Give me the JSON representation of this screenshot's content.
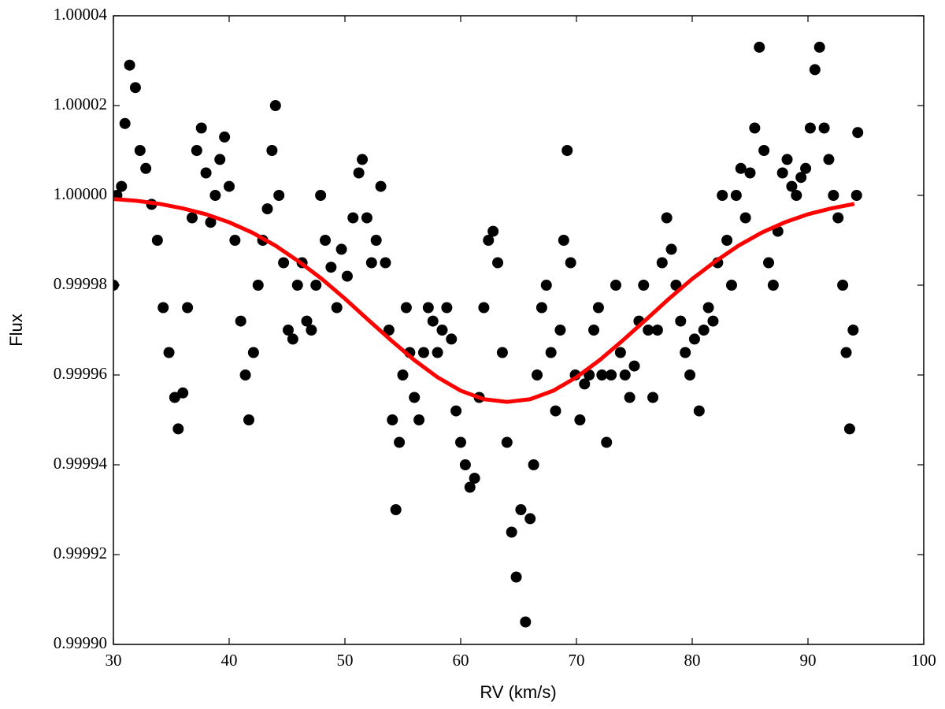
{
  "chart_data": {
    "type": "scatter",
    "xlabel": "RV (km/s)",
    "ylabel": "Flux",
    "xlim": [
      30,
      100
    ],
    "ylim": [
      0.9999,
      1.00004
    ],
    "xticks": [
      30,
      40,
      50,
      60,
      70,
      80,
      90,
      100
    ],
    "yticks": [
      {
        "value": 0.9999,
        "label": "0.99990"
      },
      0.99992,
      0.99994,
      0.99996,
      0.99998,
      {
        "value": 1,
        "label": "1.00000"
      },
      1.00002,
      1.00004
    ],
    "series": [
      {
        "type": "scatter",
        "color": "#000000",
        "x": [
          30.0,
          30.3,
          30.7,
          31.0,
          31.4,
          31.9,
          32.3,
          32.8,
          33.3,
          33.8,
          34.3,
          34.8,
          35.3,
          35.6,
          36.0,
          36.4,
          36.8,
          37.2,
          37.6,
          38.0,
          38.4,
          38.8,
          39.2,
          39.6,
          40.0,
          40.5,
          41.0,
          41.4,
          41.7,
          42.1,
          42.5,
          42.9,
          43.3,
          43.7,
          44.0,
          44.3,
          44.7,
          45.1,
          45.5,
          45.9,
          46.3,
          46.7,
          47.1,
          47.5,
          47.9,
          48.3,
          48.8,
          49.3,
          49.7,
          50.2,
          50.7,
          51.2,
          51.5,
          51.9,
          52.3,
          52.7,
          53.1,
          53.5,
          53.8,
          54.1,
          54.4,
          54.7,
          55.0,
          55.3,
          55.6,
          56.0,
          56.4,
          56.8,
          57.2,
          57.6,
          58.0,
          58.4,
          58.8,
          59.2,
          59.6,
          60.0,
          60.4,
          60.8,
          61.2,
          61.6,
          62.0,
          62.4,
          62.8,
          63.2,
          63.6,
          64.0,
          64.4,
          64.8,
          65.2,
          65.6,
          66.0,
          66.3,
          66.6,
          67.0,
          67.4,
          67.8,
          68.2,
          68.6,
          68.9,
          69.2,
          69.5,
          69.9,
          70.3,
          70.7,
          71.1,
          71.5,
          71.9,
          72.2,
          72.6,
          73.0,
          73.4,
          73.8,
          74.2,
          74.6,
          75.0,
          75.4,
          75.8,
          76.2,
          76.6,
          77.0,
          77.4,
          77.8,
          78.2,
          78.6,
          79.0,
          79.4,
          79.8,
          80.2,
          80.6,
          81.0,
          81.4,
          81.8,
          82.2,
          82.6,
          83.0,
          83.4,
          83.8,
          84.2,
          84.6,
          85.0,
          85.4,
          85.8,
          86.2,
          86.6,
          87.0,
          87.4,
          87.8,
          88.2,
          88.6,
          89.0,
          89.4,
          89.8,
          90.2,
          90.6,
          91.0,
          91.4,
          91.8,
          92.2,
          92.6,
          93.0,
          93.3,
          93.6,
          93.9,
          94.2,
          94.3
        ],
        "values": [
          0.99998,
          1.0,
          1.000002,
          1.000016,
          1.000029,
          1.000024,
          1.00001,
          1.000006,
          0.999998,
          0.99999,
          0.999975,
          0.999965,
          0.999955,
          0.999948,
          0.999956,
          0.999975,
          0.999995,
          1.00001,
          1.000015,
          1.000005,
          0.999994,
          1.0,
          1.000008,
          1.000013,
          1.000002,
          0.99999,
          0.999972,
          0.99996,
          0.99995,
          0.999965,
          0.99998,
          0.99999,
          0.999997,
          1.00001,
          1.00002,
          1.0,
          0.999985,
          0.99997,
          0.999968,
          0.99998,
          0.999985,
          0.999972,
          0.99997,
          0.99998,
          1.0,
          0.99999,
          0.999984,
          0.999975,
          0.999988,
          0.999982,
          0.999995,
          1.000005,
          1.000008,
          0.999995,
          0.999985,
          0.99999,
          1.000002,
          0.999985,
          0.99997,
          0.99995,
          0.99993,
          0.999945,
          0.99996,
          0.999975,
          0.999965,
          0.999955,
          0.99995,
          0.999965,
          0.999975,
          0.999972,
          0.999965,
          0.99997,
          0.999975,
          0.999968,
          0.999952,
          0.999945,
          0.99994,
          0.999935,
          0.999937,
          0.999955,
          0.999975,
          0.99999,
          0.999992,
          0.999985,
          0.999965,
          0.999945,
          0.999925,
          0.999915,
          0.99993,
          0.999905,
          0.999928,
          0.99994,
          0.99996,
          0.999975,
          0.99998,
          0.999965,
          0.999952,
          0.99997,
          0.99999,
          1.00001,
          0.999985,
          0.99996,
          0.99995,
          0.999958,
          0.99996,
          0.99997,
          0.999975,
          0.99996,
          0.999945,
          0.99996,
          0.99998,
          0.999965,
          0.99996,
          0.999955,
          0.999962,
          0.999972,
          0.99998,
          0.99997,
          0.999955,
          0.99997,
          0.999985,
          0.999995,
          0.999988,
          0.99998,
          0.999972,
          0.999965,
          0.99996,
          0.999968,
          0.999952,
          0.99997,
          0.999975,
          0.999972,
          0.999985,
          1.0,
          0.99999,
          0.99998,
          1.0,
          1.000006,
          0.999995,
          1.000005,
          1.000015,
          1.000033,
          1.00001,
          0.999985,
          0.99998,
          0.999992,
          1.000005,
          1.000008,
          1.000002,
          1.0,
          1.000004,
          1.000006,
          1.000015,
          1.000028,
          1.000033,
          1.000015,
          1.000008,
          1.0,
          0.999995,
          0.99998,
          0.999965,
          0.999948,
          0.99997,
          1.0,
          1.000014
        ]
      },
      {
        "type": "line",
        "color": "#ff0000",
        "x": [
          30,
          32,
          34,
          36,
          38,
          40,
          42,
          44,
          46,
          48,
          50,
          52,
          54,
          56,
          58,
          60,
          62,
          64,
          66,
          68,
          70,
          72,
          74,
          76,
          78,
          80,
          82,
          84,
          86,
          88,
          90,
          92,
          94
        ],
        "values": [
          0.9999992,
          0.9999988,
          0.9999981,
          0.9999971,
          0.9999958,
          0.999994,
          0.9999917,
          0.9999888,
          0.9999853,
          0.9999814,
          0.999977,
          0.9999723,
          0.9999677,
          0.9999633,
          0.9999595,
          0.9999565,
          0.9999546,
          0.999954,
          0.9999546,
          0.9999565,
          0.9999595,
          0.9999633,
          0.9999677,
          0.9999723,
          0.999977,
          0.9999814,
          0.9999853,
          0.9999888,
          0.9999917,
          0.999994,
          0.9999958,
          0.9999971,
          0.9999981
        ]
      }
    ]
  }
}
